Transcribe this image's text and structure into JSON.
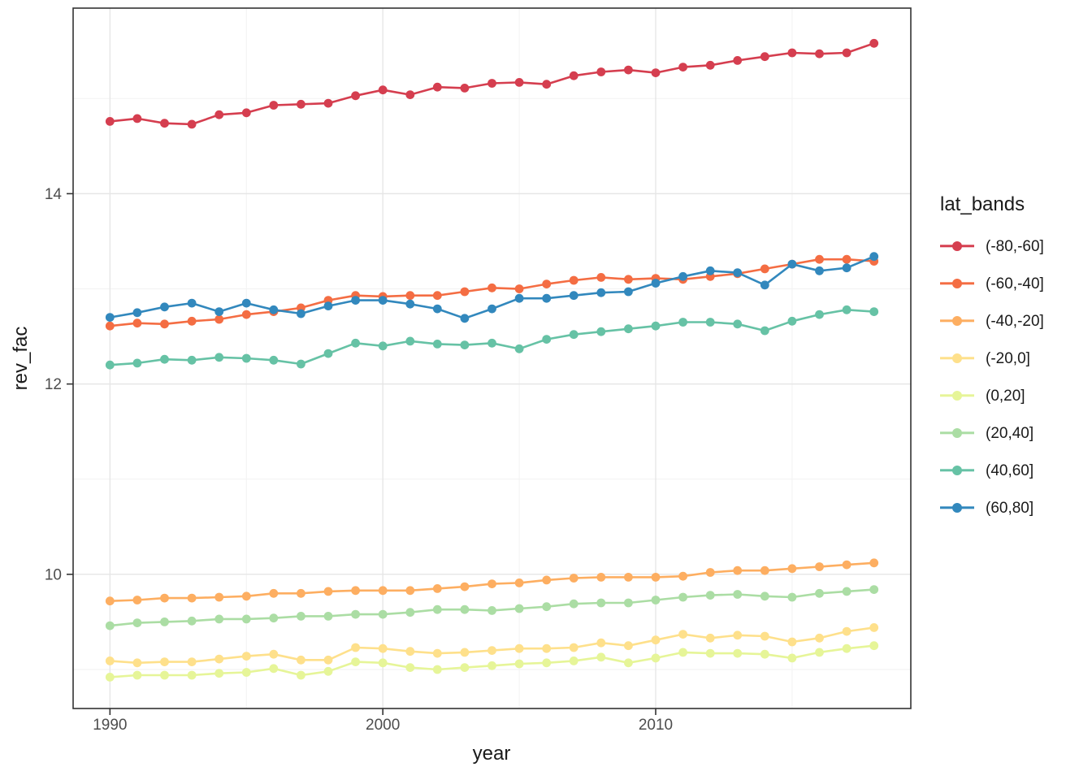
{
  "chart_data": {
    "type": "line",
    "title": "",
    "xlabel": "year",
    "ylabel": "rev_fac",
    "legend_title": "lat_bands",
    "legend_position": "right",
    "grid": true,
    "x_domain": [
      1988.65,
      2019.35
    ],
    "y_domain": [
      8.59,
      15.95
    ],
    "x_major_ticks": [
      1990,
      2000,
      2010
    ],
    "x_minor_gridlines": [
      1995,
      2005,
      2015
    ],
    "y_major_ticks": [
      10,
      12,
      14
    ],
    "y_minor_gridlines": [
      9,
      11,
      13,
      15
    ],
    "x": [
      1990,
      1991,
      1992,
      1993,
      1994,
      1995,
      1996,
      1997,
      1998,
      1999,
      2000,
      2001,
      2002,
      2003,
      2004,
      2005,
      2006,
      2007,
      2008,
      2009,
      2010,
      2011,
      2012,
      2013,
      2014,
      2015,
      2016,
      2017,
      2018
    ],
    "series": [
      {
        "name": "(-80,-60]",
        "color": "#d53e4f",
        "values": [
          14.76,
          14.79,
          14.74,
          14.73,
          14.83,
          14.85,
          14.93,
          14.94,
          14.95,
          15.03,
          15.09,
          15.04,
          15.12,
          15.11,
          15.16,
          15.17,
          15.15,
          15.24,
          15.28,
          15.3,
          15.27,
          15.33,
          15.35,
          15.4,
          15.44,
          15.48,
          15.47,
          15.48,
          15.58
        ]
      },
      {
        "name": "(-60,-40]",
        "color": "#f46d43",
        "values": [
          12.61,
          12.64,
          12.63,
          12.66,
          12.68,
          12.73,
          12.76,
          12.8,
          12.88,
          12.93,
          12.92,
          12.93,
          12.93,
          12.97,
          13.01,
          13.0,
          13.05,
          13.09,
          13.12,
          13.1,
          13.11,
          13.1,
          13.13,
          13.16,
          13.21,
          13.26,
          13.31,
          13.31,
          13.29
        ]
      },
      {
        "name": "(-40,-20]",
        "color": "#fdae61",
        "values": [
          9.72,
          9.73,
          9.75,
          9.75,
          9.76,
          9.77,
          9.8,
          9.8,
          9.82,
          9.83,
          9.83,
          9.83,
          9.85,
          9.87,
          9.9,
          9.91,
          9.94,
          9.96,
          9.97,
          9.97,
          9.97,
          9.98,
          10.02,
          10.04,
          10.04,
          10.06,
          10.08,
          10.1,
          10.12
        ]
      },
      {
        "name": "(-20,0]",
        "color": "#fee08b",
        "values": [
          9.09,
          9.07,
          9.08,
          9.08,
          9.11,
          9.14,
          9.16,
          9.1,
          9.1,
          9.23,
          9.22,
          9.19,
          9.17,
          9.18,
          9.2,
          9.22,
          9.22,
          9.23,
          9.28,
          9.25,
          9.31,
          9.37,
          9.33,
          9.36,
          9.35,
          9.29,
          9.33,
          9.4,
          9.44
        ]
      },
      {
        "name": "(0,20]",
        "color": "#e6f598",
        "values": [
          8.92,
          8.94,
          8.94,
          8.94,
          8.96,
          8.97,
          9.01,
          8.94,
          8.98,
          9.08,
          9.07,
          9.02,
          9.0,
          9.02,
          9.04,
          9.06,
          9.07,
          9.09,
          9.13,
          9.07,
          9.12,
          9.18,
          9.17,
          9.17,
          9.16,
          9.12,
          9.18,
          9.22,
          9.25
        ]
      },
      {
        "name": "(20,40]",
        "color": "#abdda4",
        "values": [
          9.46,
          9.49,
          9.5,
          9.51,
          9.53,
          9.53,
          9.54,
          9.56,
          9.56,
          9.58,
          9.58,
          9.6,
          9.63,
          9.63,
          9.62,
          9.64,
          9.66,
          9.69,
          9.7,
          9.7,
          9.73,
          9.76,
          9.78,
          9.79,
          9.77,
          9.76,
          9.8,
          9.82,
          9.84
        ]
      },
      {
        "name": "(40,60]",
        "color": "#66c2a5",
        "values": [
          12.2,
          12.22,
          12.26,
          12.25,
          12.28,
          12.27,
          12.25,
          12.21,
          12.32,
          12.43,
          12.4,
          12.45,
          12.42,
          12.41,
          12.43,
          12.37,
          12.47,
          12.52,
          12.55,
          12.58,
          12.61,
          12.65,
          12.65,
          12.63,
          12.56,
          12.66,
          12.73,
          12.78,
          12.76
        ]
      },
      {
        "name": "(60,80]",
        "color": "#3288bd",
        "values": [
          12.7,
          12.75,
          12.81,
          12.85,
          12.76,
          12.85,
          12.78,
          12.74,
          12.82,
          12.88,
          12.88,
          12.84,
          12.79,
          12.69,
          12.79,
          12.9,
          12.9,
          12.93,
          12.96,
          12.97,
          13.06,
          13.13,
          13.19,
          13.17,
          13.04,
          13.26,
          13.19,
          13.22,
          13.34
        ]
      }
    ],
    "style": {
      "panel_border_color": "#333333",
      "major_grid_color": "#e6e6e6",
      "minor_grid_color": "#f2f2f2",
      "tick_color": "#333333",
      "tick_label_color": "#4d4d4d"
    }
  }
}
